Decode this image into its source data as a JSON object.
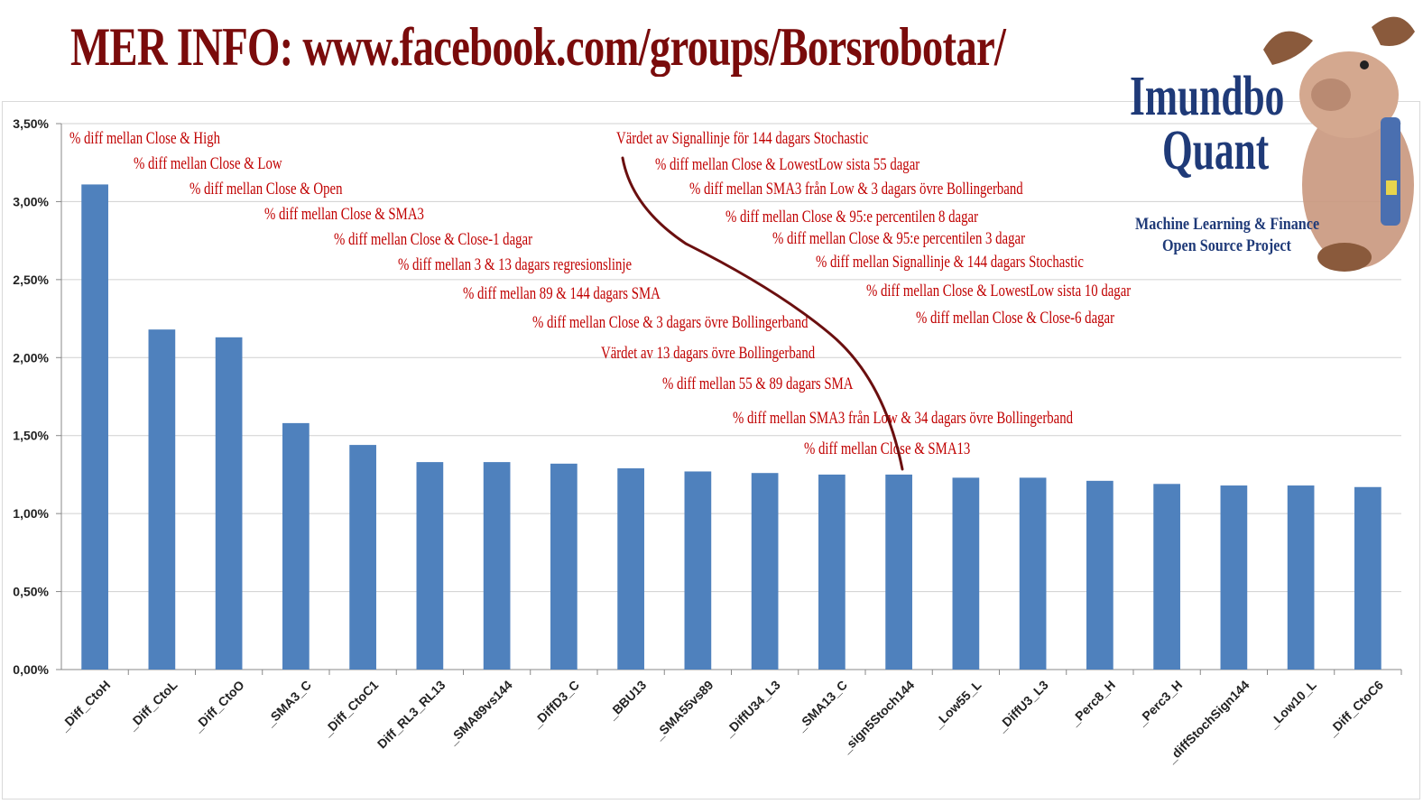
{
  "header": {
    "title": "MER INFO:  www.facebook.com/groups/Borsrobotar/"
  },
  "logo": {
    "name_line1": "Imundbo",
    "name_line2": "Quant",
    "subtitle_line1": "Machine Learning & Finance",
    "subtitle_line2": "Open Source Project",
    "mascot_icon": "moose-mascot-icon"
  },
  "colors": {
    "bar": "#4f81bd",
    "annotation": "#c00000",
    "title": "#7a0b0b",
    "logo_text": "#1f3a78",
    "arrow": "#6b0f0f"
  },
  "chart_data": {
    "type": "bar",
    "categories": [
      "_Diff_CtoH",
      "_Diff_CtoL",
      "_Diff_CtoO",
      "_SMA3_C",
      "_Diff_CtoC1",
      "Diff_RL3_RL13",
      "_SMA89vs144",
      "_DiffD3_C",
      "_BBU13",
      "_SMA55vs89",
      "_DiffU34_L3",
      "_SMA13_C",
      "_sign5Stoch144",
      "_Low55_L",
      "_DiffU3_L3",
      "_Perc8_H",
      "_Perc3_H",
      "_diffStochSign144",
      "_Low10_L",
      "_Diff_CtoC6"
    ],
    "values": [
      3.11,
      2.18,
      2.13,
      1.58,
      1.44,
      1.33,
      1.33,
      1.32,
      1.29,
      1.27,
      1.26,
      1.25,
      1.25,
      1.23,
      1.23,
      1.21,
      1.19,
      1.18,
      1.18,
      1.17
    ],
    "ylim": [
      0,
      3.5
    ],
    "yticks": [
      "0,00%",
      "0,50%",
      "1,00%",
      "1,50%",
      "2,00%",
      "2,50%",
      "3,00%",
      "3,50%"
    ],
    "grid": true,
    "annotations": [
      "% diff mellan Close & High",
      "% diff mellan Close & Low",
      "% diff mellan Close & Open",
      "% diff mellan Close & SMA3",
      "% diff mellan Close & Close-1 dagar",
      "% diff mellan 3 & 13 dagars regresionslinje",
      "% diff mellan 89 & 144 dagars SMA",
      "% diff mellan Close & 3 dagars övre Bollingerband",
      "Värdet av 13 dagars övre Bollingerband",
      "% diff mellan 55 & 89 dagars SMA",
      "% diff mellan SMA3 från Low & 34 dagars övre Bollingerband",
      "% diff mellan Close & SMA13",
      "Värdet av Signallinje för 144 dagars Stochastic",
      "% diff mellan Close & LowestLow sista 55 dagar",
      "% diff mellan SMA3 från Low & 3 dagars övre Bollingerband",
      "% diff mellan Close & 95:e percentilen 8 dagar",
      "% diff mellan Close & 95:e percentilen 3 dagar",
      "% diff mellan Signallinje & 144 dagars Stochastic",
      "% diff mellan Close & LowestLow sista 10 dagar",
      "% diff mellan Close & Close-6 dagar"
    ]
  }
}
